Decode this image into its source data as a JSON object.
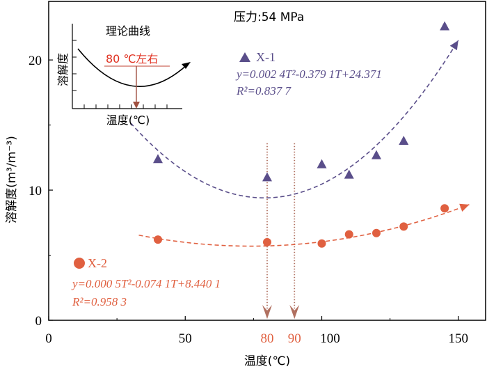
{
  "chart_data": {
    "type": "scatter",
    "title": "",
    "pressure_label": "压力:54 MPa",
    "xlabel": "温度(℃)",
    "ylabel": "溶解度(m³/m⁻³)",
    "xlim": [
      0,
      160
    ],
    "ylim": [
      0,
      24.5
    ],
    "x_ticks": [
      0,
      50,
      100,
      150
    ],
    "y_ticks": [
      0,
      10,
      20
    ],
    "highlight_ticks": [
      80,
      90
    ],
    "colors": {
      "x1": "#5a4e8a",
      "x2": "#e06040",
      "marker_line": "#b07060",
      "axis": "#000000"
    },
    "series": [
      {
        "name": "X-1",
        "marker": "triangle",
        "x": [
          40,
          80,
          100,
          110,
          120,
          130,
          145
        ],
        "y": [
          12.4,
          11.0,
          12.0,
          11.2,
          12.7,
          13.8,
          22.6
        ],
        "fit": {
          "a": 0.0024,
          "b": -0.3791,
          "c": 24.371,
          "x_range": [
            30,
            150
          ]
        },
        "equation": "y=0.002 4T²-0.379 1T+24.371",
        "r2": "R²=0.837 7"
      },
      {
        "name": "X-2",
        "marker": "circle",
        "x": [
          40,
          80,
          100,
          110,
          120,
          130,
          145
        ],
        "y": [
          6.2,
          6.0,
          5.9,
          6.6,
          6.7,
          7.2,
          8.6
        ],
        "fit": {
          "a": 0.0005,
          "b": -0.0741,
          "c": 8.4401,
          "x_range": [
            33,
            154
          ]
        },
        "equation": "y=0.000 5T²-0.074 1T+8.440 1",
        "r2": "R²=0.958 3"
      }
    ],
    "inset": {
      "title": "理论曲线",
      "annotation": "80 ℃左右",
      "xlabel": "温度(℃)",
      "ylabel": "溶解度"
    }
  }
}
